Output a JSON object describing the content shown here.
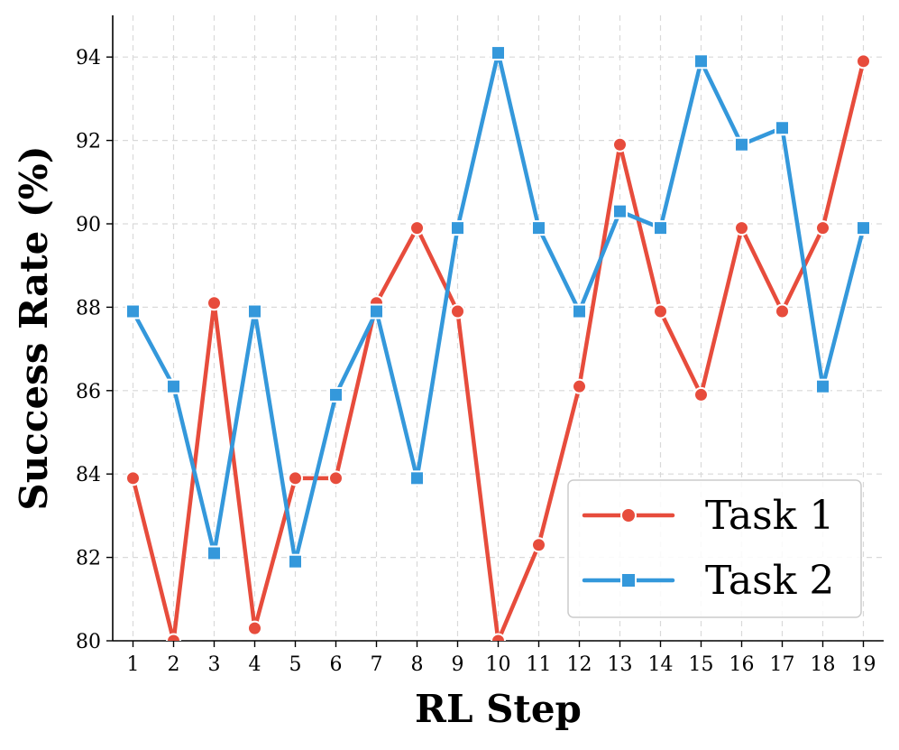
{
  "chart_data": {
    "type": "line",
    "title": "",
    "xlabel": "RL Step",
    "ylabel": "Success Rate (%)",
    "x": [
      1,
      2,
      3,
      4,
      5,
      6,
      7,
      8,
      9,
      10,
      11,
      12,
      13,
      14,
      15,
      16,
      17,
      18,
      19
    ],
    "xlim": [
      0.5,
      19.5
    ],
    "ylim": [
      80,
      95
    ],
    "yticks": [
      80,
      82,
      84,
      86,
      88,
      90,
      92,
      94
    ],
    "grid": true,
    "legend_position": "bottom-right",
    "series": [
      {
        "name": "Task 1",
        "color": "#e74c3c",
        "marker": "circle",
        "values": [
          83.9,
          80.0,
          88.1,
          80.3,
          83.9,
          83.9,
          88.1,
          89.9,
          87.9,
          80.0,
          82.3,
          86.1,
          91.9,
          87.9,
          85.9,
          89.9,
          87.9,
          89.9,
          93.9
        ]
      },
      {
        "name": "Task 2",
        "color": "#3498db",
        "marker": "square",
        "values": [
          87.9,
          86.1,
          82.1,
          87.9,
          81.9,
          85.9,
          87.9,
          83.9,
          89.9,
          94.1,
          89.9,
          87.9,
          90.3,
          89.9,
          93.9,
          91.9,
          92.3,
          86.1,
          89.9
        ]
      }
    ]
  }
}
